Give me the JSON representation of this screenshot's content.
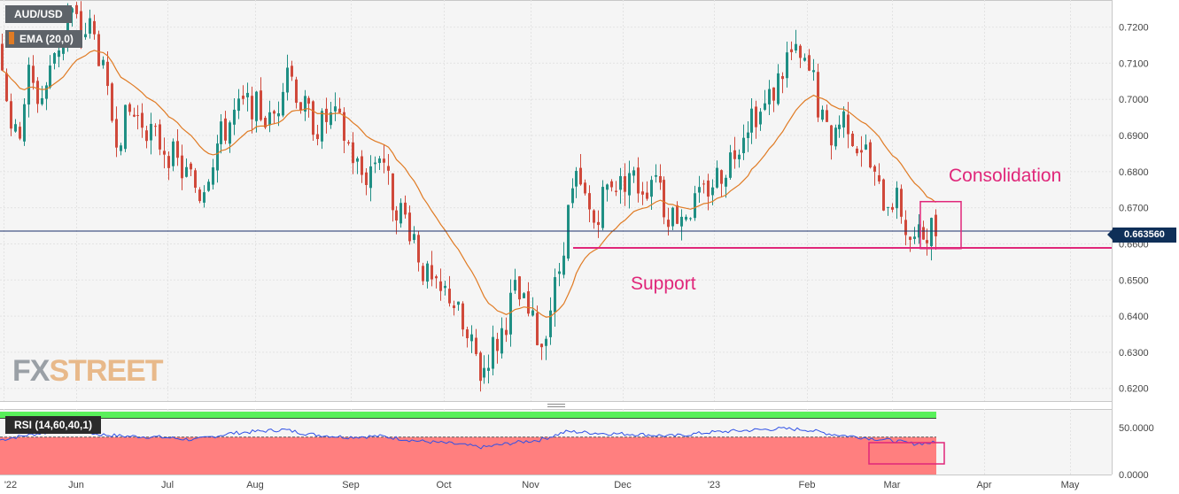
{
  "header": {
    "pair": "AUD/USD",
    "ema_label": "EMA (20,0)"
  },
  "rsi_panel": {
    "label": "RSI (14,60,40,1)"
  },
  "watermark": {
    "fx": "FX",
    "street": "STREET"
  },
  "annotations": {
    "consolidation": "Consolidation",
    "support": "Support"
  },
  "current_price": "0.663560",
  "colors": {
    "bull": "#1f8f84",
    "bear": "#d0493b",
    "ema": "#e07b24",
    "support": "#e0277a",
    "rsi_line": "#2f50e6",
    "rsi_upper": "#59f05a",
    "rsi_lower": "#ff7f7f",
    "price_line": "#1a2f6b"
  },
  "chart_data": [
    {
      "type": "candlestick",
      "title": "AUD/USD",
      "indicator": "EMA (20,0)",
      "x_ticks": [
        "'22",
        "Jun",
        "Jul",
        "Aug",
        "Sep",
        "Oct",
        "Nov",
        "Dec",
        "'23",
        "Feb",
        "Mar",
        "Apr",
        "May"
      ],
      "y_ticks": [
        "0.6200",
        "0.6300",
        "0.6400",
        "0.6500",
        "0.6600",
        "0.6700",
        "0.6800",
        "0.6900",
        "0.7000",
        "0.7100",
        "0.7200"
      ],
      "ylim": [
        0.6165,
        0.7275
      ],
      "current_price": 0.66356,
      "support_level": 0.6589,
      "grid": true,
      "close_path": [
        [
          0,
          0.715
        ],
        [
          10,
          0.696
        ],
        [
          18,
          0.688
        ],
        [
          25,
          0.696
        ],
        [
          30,
          0.708
        ],
        [
          38,
          0.702
        ],
        [
          45,
          0.7
        ],
        [
          55,
          0.706
        ],
        [
          63,
          0.715
        ],
        [
          70,
          0.716
        ],
        [
          78,
          0.725
        ],
        [
          84,
          0.722
        ],
        [
          92,
          0.718
        ],
        [
          102,
          0.72
        ],
        [
          112,
          0.712
        ],
        [
          122,
          0.698
        ],
        [
          132,
          0.69
        ],
        [
          145,
          0.696
        ],
        [
          155,
          0.695
        ],
        [
          165,
          0.693
        ],
        [
          175,
          0.689
        ],
        [
          185,
          0.687
        ],
        [
          195,
          0.684
        ],
        [
          205,
          0.68
        ],
        [
          215,
          0.678
        ],
        [
          225,
          0.674
        ],
        [
          235,
          0.681
        ],
        [
          245,
          0.688
        ],
        [
          255,
          0.692
        ],
        [
          265,
          0.696
        ],
        [
          275,
          0.698
        ],
        [
          285,
          0.699
        ],
        [
          295,
          0.696
        ],
        [
          305,
          0.693
        ],
        [
          315,
          0.7
        ],
        [
          322,
          0.712
        ],
        [
          330,
          0.705
        ],
        [
          340,
          0.698
        ],
        [
          350,
          0.695
        ],
        [
          360,
          0.692
        ],
        [
          370,
          0.695
        ],
        [
          380,
          0.694
        ],
        [
          390,
          0.689
        ],
        [
          400,
          0.683
        ],
        [
          410,
          0.678
        ],
        [
          420,
          0.682
        ],
        [
          430,
          0.687
        ],
        [
          440,
          0.673
        ],
        [
          450,
          0.67
        ],
        [
          460,
          0.666
        ],
        [
          468,
          0.662
        ],
        [
          475,
          0.654
        ],
        [
          485,
          0.649
        ],
        [
          495,
          0.645
        ],
        [
          505,
          0.647
        ],
        [
          515,
          0.642
        ],
        [
          525,
          0.633
        ],
        [
          535,
          0.63
        ],
        [
          543,
          0.623
        ],
        [
          552,
          0.63
        ],
        [
          562,
          0.633
        ],
        [
          570,
          0.638
        ],
        [
          580,
          0.647
        ],
        [
          590,
          0.643
        ],
        [
          600,
          0.638
        ],
        [
          610,
          0.632
        ],
        [
          620,
          0.642
        ],
        [
          630,
          0.652
        ],
        [
          640,
          0.668
        ],
        [
          650,
          0.677
        ],
        [
          660,
          0.672
        ],
        [
          670,
          0.666
        ],
        [
          680,
          0.673
        ],
        [
          690,
          0.678
        ],
        [
          700,
          0.676
        ],
        [
          710,
          0.68
        ],
        [
          720,
          0.676
        ],
        [
          730,
          0.676
        ],
        [
          740,
          0.682
        ],
        [
          750,
          0.67
        ],
        [
          760,
          0.668
        ],
        [
          770,
          0.669
        ],
        [
          780,
          0.67
        ],
        [
          790,
          0.672
        ],
        [
          800,
          0.676
        ],
        [
          810,
          0.679
        ],
        [
          820,
          0.682
        ],
        [
          830,
          0.687
        ],
        [
          840,
          0.693
        ],
        [
          850,
          0.697
        ],
        [
          860,
          0.696
        ],
        [
          870,
          0.701
        ],
        [
          880,
          0.706
        ],
        [
          890,
          0.713
        ],
        [
          900,
          0.711
        ],
        [
          910,
          0.708
        ],
        [
          918,
          0.705
        ],
        [
          925,
          0.695
        ],
        [
          935,
          0.689
        ],
        [
          945,
          0.693
        ],
        [
          955,
          0.696
        ],
        [
          965,
          0.688
        ],
        [
          975,
          0.687
        ],
        [
          985,
          0.679
        ],
        [
          995,
          0.672
        ],
        [
          1005,
          0.673
        ],
        [
          1015,
          0.671
        ],
        [
          1022,
          0.664
        ],
        [
          1030,
          0.66
        ],
        [
          1040,
          0.662
        ],
        [
          1048,
          0.665
        ],
        [
          1057,
          0.6635
        ]
      ]
    },
    {
      "type": "line",
      "title": "RSI (14,60,40,1)",
      "y_ticks": [
        "0.0000",
        "50.0000"
      ],
      "x_ticks": [
        "'22",
        "Jun",
        "Jul",
        "Aug",
        "Sep",
        "Oct",
        "Nov",
        "Dec",
        "'23",
        "Feb",
        "Mar",
        "Apr",
        "May"
      ],
      "ylim": [
        0,
        70
      ],
      "levels": {
        "upper": 60,
        "lower": 40
      },
      "values_path": [
        [
          0,
          37
        ],
        [
          30,
          42
        ],
        [
          60,
          46
        ],
        [
          84,
          48
        ],
        [
          110,
          43
        ],
        [
          140,
          41
        ],
        [
          180,
          40
        ],
        [
          220,
          37
        ],
        [
          260,
          44
        ],
        [
          290,
          46
        ],
        [
          320,
          48
        ],
        [
          350,
          43
        ],
        [
          390,
          40
        ],
        [
          430,
          41
        ],
        [
          470,
          36
        ],
        [
          510,
          33
        ],
        [
          545,
          29
        ],
        [
          580,
          34
        ],
        [
          610,
          37
        ],
        [
          640,
          46
        ],
        [
          680,
          44
        ],
        [
          720,
          43
        ],
        [
          760,
          41
        ],
        [
          800,
          45
        ],
        [
          840,
          47
        ],
        [
          880,
          49
        ],
        [
          910,
          48
        ],
        [
          940,
          43
        ],
        [
          980,
          39
        ],
        [
          1010,
          36
        ],
        [
          1030,
          33
        ],
        [
          1057,
          34
        ]
      ]
    }
  ]
}
